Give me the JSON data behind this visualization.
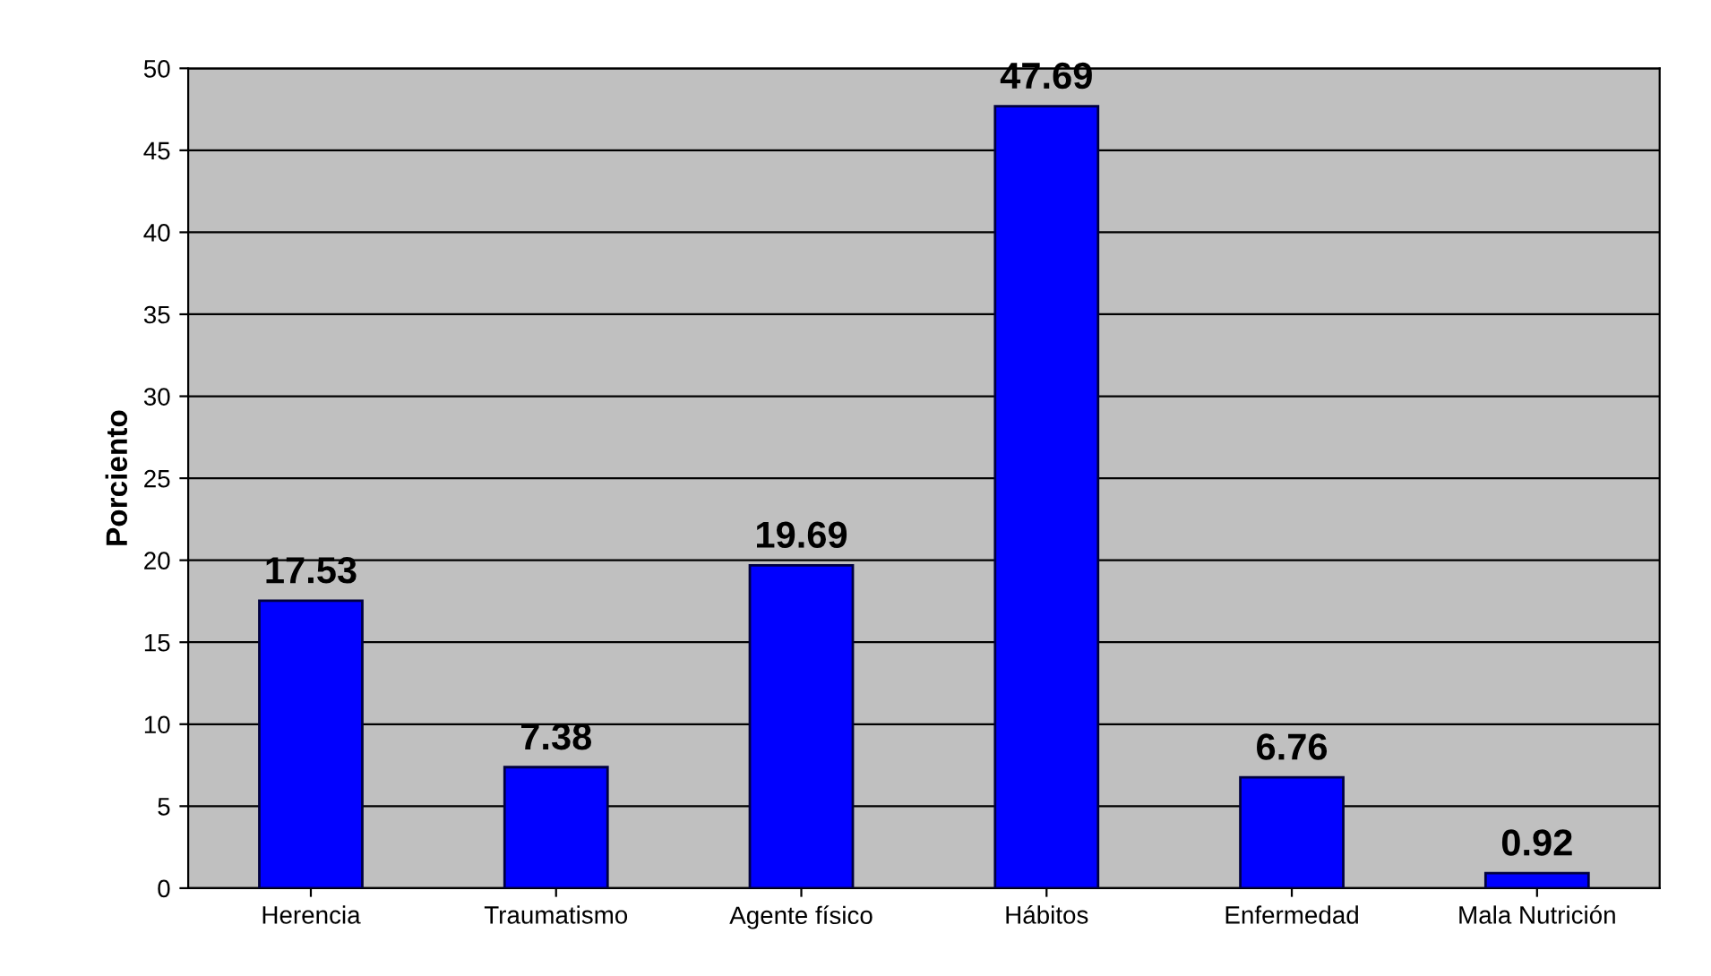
{
  "chart_data": {
    "type": "bar",
    "ylabel": "Porciento",
    "categories": [
      "Herencia",
      "Traumatismo",
      "Agente físico",
      "Hábitos",
      "Enfermedad",
      "Mala Nutrición"
    ],
    "values": [
      17.53,
      7.38,
      19.69,
      47.69,
      6.76,
      0.92
    ],
    "color": "#0000ff",
    "ylim": [
      0,
      50
    ],
    "yticks": [
      0,
      5,
      10,
      15,
      20,
      25,
      30,
      35,
      40,
      45,
      50
    ],
    "grid": "y",
    "data_labels": true
  }
}
